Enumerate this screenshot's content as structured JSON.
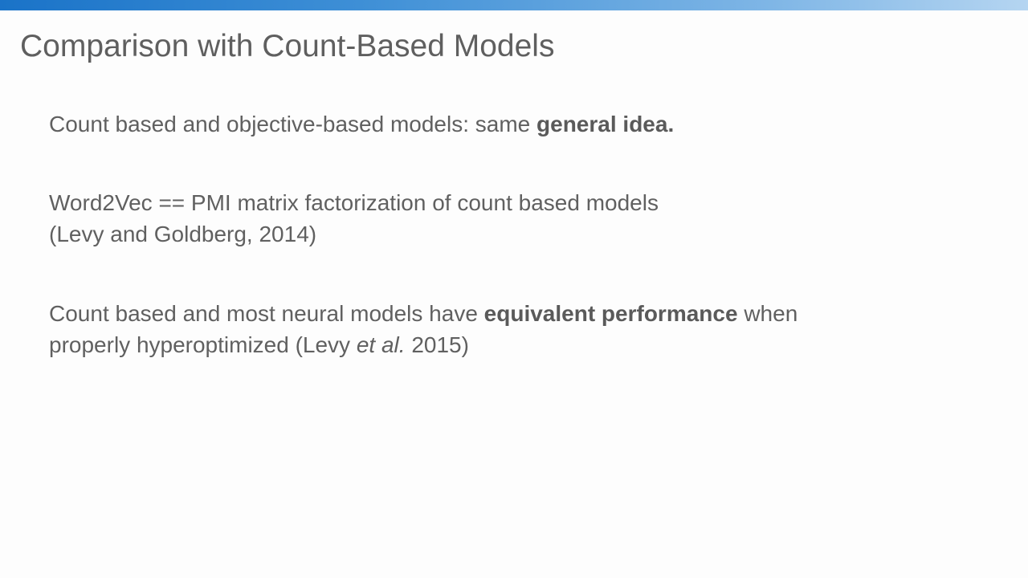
{
  "title": "Comparison with Count-Based Models",
  "bullets": [
    {
      "text_before": "Count based and objective-based models: same ",
      "bold": "general idea."
    },
    {
      "line1": "Word2Vec == PMI matrix factorization of count based models",
      "line2": "(Levy and Goldberg, 2014)"
    },
    {
      "text_before": "Count based and most neural models have ",
      "bold": "equivalent performance",
      "text_after": " when",
      "line2_before": "properly hyperoptimized (Levy ",
      "line2_italic": "et al.",
      "line2_after": " 2015)"
    }
  ],
  "colors": {
    "accent_bar_start": "#1a73c8",
    "accent_bar_end": "#b5d5f1",
    "text": "#606060",
    "background": "#fdfdfd"
  }
}
